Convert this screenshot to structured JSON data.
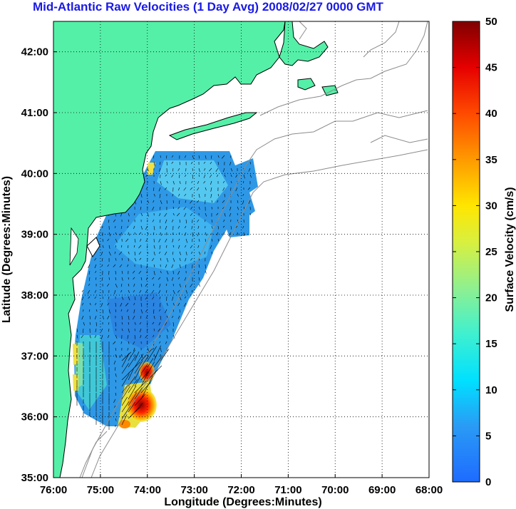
{
  "title": "Mid-Atlantic Raw Velocities (1 Day Avg) 2008/02/27 0000 GMT",
  "map": {
    "xlabel": "Longitude (Degrees:Minutes)",
    "ylabel": "Latitude (Degrees:Minutes)",
    "lon_ticks": [
      "76:00",
      "75:00",
      "74:00",
      "73:00",
      "72:00",
      "71:00",
      "70:00",
      "69:00",
      "68:00"
    ],
    "lat_ticks": [
      "35:00",
      "36:00",
      "37:00",
      "38:00",
      "39:00",
      "40:00",
      "41:00",
      "42:00"
    ],
    "lon_range": [
      -76,
      -68
    ],
    "lat_range": [
      35,
      42.5
    ],
    "land_color": "#55f0a8",
    "grid": "dotted"
  },
  "colorbar": {
    "label": "Surface Velocity (cm/s)",
    "ticks": [
      "0",
      "5",
      "10",
      "15",
      "20",
      "25",
      "30",
      "35",
      "40",
      "45",
      "50"
    ],
    "range": [
      0,
      50
    ],
    "colormap": "jet"
  }
}
